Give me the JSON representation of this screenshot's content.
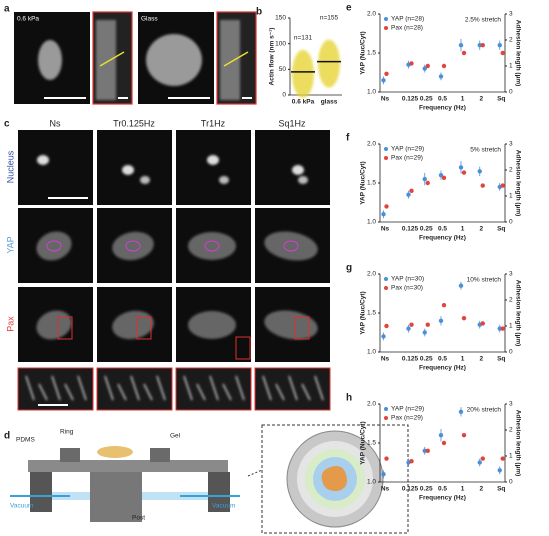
{
  "panels": {
    "a": {
      "letter": "a",
      "labels": [
        "0.6 kPa",
        "Glass"
      ]
    },
    "c": {
      "letter": "c",
      "columns": [
        "Ns",
        "Tr0.125Hz",
        "Tr1Hz",
        "Sq1Hz"
      ],
      "rows": [
        "Nucleus",
        "YAP",
        "Pax"
      ]
    },
    "d": {
      "letter": "d",
      "labels": [
        "PDMS",
        "Ring",
        "Gel",
        "Post",
        "Vacuum",
        "Vacuum"
      ]
    }
  },
  "chart_data": [
    {
      "type": "swarm",
      "panel": "b",
      "ylabel": "Actin flow (nm s⁻¹)",
      "categories": [
        "0.6 kPa",
        "glass"
      ],
      "values": [
        45,
        65
      ],
      "annotations": [
        "n=131",
        "n=155"
      ],
      "color": "#e6d22a",
      "ylim": [
        0,
        150
      ],
      "yticks": [
        0,
        50,
        100,
        150
      ]
    },
    {
      "type": "dot",
      "panel": "e",
      "annotation": "2.5% stretch",
      "xlabel": "Frequency (Hz)",
      "ylabel": "YAP (Nuc/Cyt)",
      "y2label": "Adhesion length (µm)",
      "categories": [
        "Ns",
        "0.125",
        "0.25",
        "0.5",
        "1",
        "2",
        "Sq"
      ],
      "ylim": [
        1,
        2
      ],
      "yticks": [
        {
          "value": 1,
          "label": "1.0"
        },
        {
          "value": 1.5,
          "label": "1.5"
        },
        {
          "value": 2,
          "label": "2.0"
        }
      ],
      "y2lim": [
        0,
        3
      ],
      "y2ticks": [
        0,
        1,
        2,
        3
      ],
      "series": [
        {
          "name": "YAP (n=28)",
          "color": "#4a90d9",
          "values": [
            1.15,
            1.35,
            1.3,
            1.2,
            1.6,
            1.6,
            1.6
          ],
          "errors": [
            0.05,
            0.05,
            0.05,
            0.05,
            0.08,
            0.06,
            0.06
          ]
        },
        {
          "name": "Pax (n=28)",
          "color": "#e0443c",
          "axis": "y2",
          "values": [
            0.7,
            1.1,
            1.0,
            1.0,
            1.5,
            1.8,
            1.5
          ]
        }
      ]
    },
    {
      "type": "dot",
      "panel": "f",
      "annotation": "5% stretch",
      "xlabel": "Frequency (Hz)",
      "ylabel": "YAP (Nuc/Cyt)",
      "y2label": "Adhesion length (µm)",
      "categories": [
        "Ns",
        "0.125",
        "0.25",
        "0.5",
        "1",
        "2",
        "Sq"
      ],
      "ylim": [
        1,
        2
      ],
      "yticks": [
        {
          "value": 1,
          "label": "1.0"
        },
        {
          "value": 1.5,
          "label": "1.5"
        },
        {
          "value": 2,
          "label": "2.0"
        }
      ],
      "y2lim": [
        0,
        3
      ],
      "y2ticks": [
        0,
        1,
        2,
        3
      ],
      "series": [
        {
          "name": "YAP (n=29)",
          "color": "#4a90d9",
          "values": [
            1.1,
            1.35,
            1.55,
            1.6,
            1.7,
            1.65,
            1.45
          ],
          "errors": [
            0.05,
            0.05,
            0.08,
            0.06,
            0.08,
            0.06,
            0.05
          ]
        },
        {
          "name": "Pax (n=29)",
          "color": "#e0443c",
          "axis": "y2",
          "values": [
            0.6,
            1.2,
            1.5,
            1.7,
            1.9,
            1.4,
            1.4
          ]
        }
      ]
    },
    {
      "type": "dot",
      "panel": "g",
      "annotation": "10% stretch",
      "xlabel": "Frequency (Hz)",
      "ylabel": "YAP (Nuc/Cyt)",
      "y2label": "Adhesion length (µm)",
      "categories": [
        "Ns",
        "0.125",
        "0.25",
        "0.5",
        "1",
        "2",
        "Sq"
      ],
      "ylim": [
        1,
        2
      ],
      "yticks": [
        {
          "value": 1,
          "label": "1.0"
        },
        {
          "value": 1.5,
          "label": "1.5"
        },
        {
          "value": 2,
          "label": "2.0"
        }
      ],
      "y2lim": [
        0,
        3
      ],
      "y2ticks": [
        0,
        1,
        2,
        3
      ],
      "series": [
        {
          "name": "YAP (n=30)",
          "color": "#4a90d9",
          "values": [
            1.2,
            1.3,
            1.25,
            1.4,
            1.85,
            1.35,
            1.3
          ],
          "errors": [
            0.05,
            0.05,
            0.05,
            0.06,
            0.05,
            0.05,
            0.05
          ]
        },
        {
          "name": "Pax (n=30)",
          "color": "#e0443c",
          "axis": "y2",
          "values": [
            1.0,
            1.05,
            1.05,
            1.8,
            1.3,
            1.1,
            0.9
          ]
        }
      ]
    },
    {
      "type": "dot",
      "panel": "h",
      "annotation": "20% stretch",
      "xlabel": "Frequency (Hz)",
      "ylabel": "YAP (Nuc/Cyt)",
      "y2label": "Adhesion length (µm)",
      "categories": [
        "Ns",
        "0.125",
        "0.25",
        "0.5",
        "1",
        "2",
        "Sq"
      ],
      "ylim": [
        1,
        2
      ],
      "yticks": [
        {
          "value": 1,
          "label": "1.0"
        },
        {
          "value": 1.5,
          "label": "1.5"
        },
        {
          "value": 2,
          "label": "2.0"
        }
      ],
      "y2lim": [
        0,
        3
      ],
      "y2ticks": [
        0,
        1,
        2,
        3
      ],
      "series": [
        {
          "name": "YAP (n=29)",
          "color": "#4a90d9",
          "values": [
            1.1,
            1.25,
            1.4,
            1.6,
            1.9,
            1.25,
            1.15
          ],
          "errors": [
            0.05,
            0.05,
            0.05,
            0.08,
            0.06,
            0.05,
            0.05
          ]
        },
        {
          "name": "Pax (n=29)",
          "color": "#e0443c",
          "axis": "y2",
          "values": [
            0.9,
            0.8,
            1.2,
            1.5,
            1.8,
            0.9,
            0.9
          ]
        }
      ]
    }
  ]
}
